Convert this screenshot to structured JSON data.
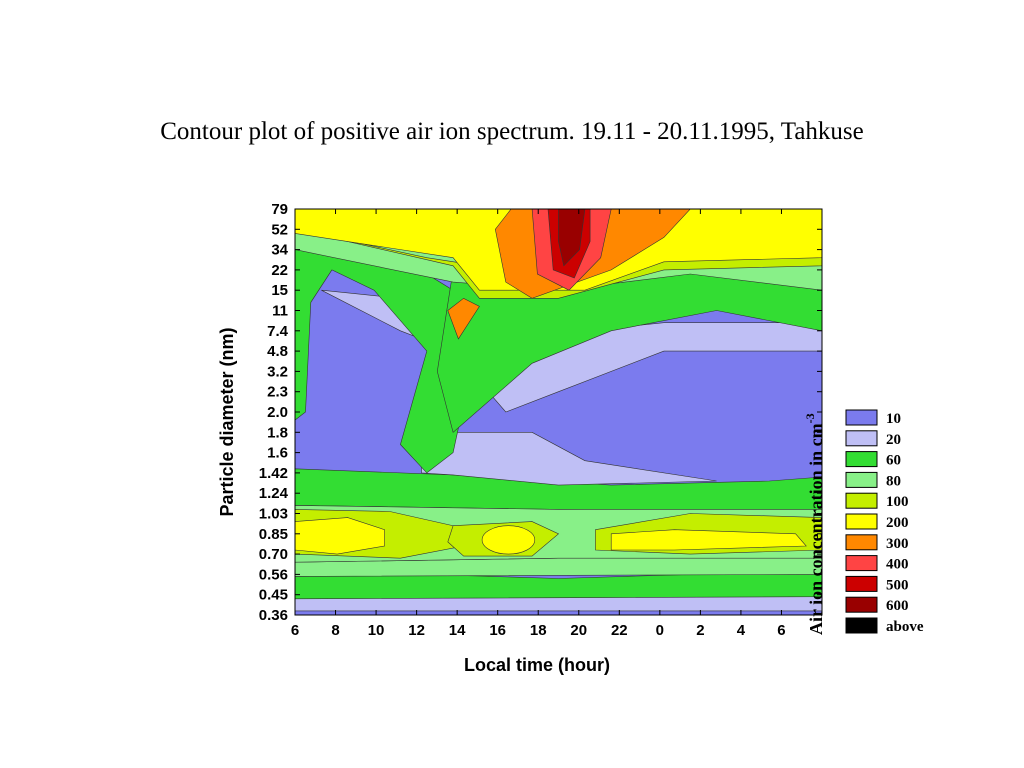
{
  "slide": {
    "title": "Contour plot of positive air ion spectrum. 19.11 - 20.11.1995, Tahkuse"
  },
  "chart_data": {
    "type": "heatmap",
    "xlabel": "Local time (hour)",
    "ylabel": "Particle diameter (nm)",
    "x_tick_labels": [
      "6",
      "8",
      "10",
      "12",
      "14",
      "16",
      "18",
      "20",
      "22",
      "0",
      "2",
      "4",
      "6"
    ],
    "x_range_hours_elapsed": [
      0,
      26
    ],
    "y_tick_labels": [
      "0.36",
      "0.45",
      "0.56",
      "0.70",
      "0.85",
      "1.03",
      "1.24",
      "1.42",
      "1.6",
      "1.8",
      "2.0",
      "2.3",
      "3.2",
      "4.8",
      "7.4",
      "11",
      "15",
      "22",
      "34",
      "52",
      "79"
    ],
    "legend_title": "Air ion concentration in cm",
    "legend_title_superscript": "-3",
    "levels": [
      {
        "label": "10",
        "color": "#7b7bee"
      },
      {
        "label": "20",
        "color": "#bfbff5"
      },
      {
        "label": "60",
        "color": "#33dd33"
      },
      {
        "label": "80",
        "color": "#88f088"
      },
      {
        "label": "100",
        "color": "#c4ee00"
      },
      {
        "label": "200",
        "color": "#ffff00"
      },
      {
        "label": "300",
        "color": "#ff8800"
      },
      {
        "label": "400",
        "color": "#ff4444"
      },
      {
        "label": "500",
        "color": "#cc0000"
      },
      {
        "label": "600",
        "color": "#990000"
      },
      {
        "label": "above",
        "color": "#000000"
      }
    ]
  }
}
